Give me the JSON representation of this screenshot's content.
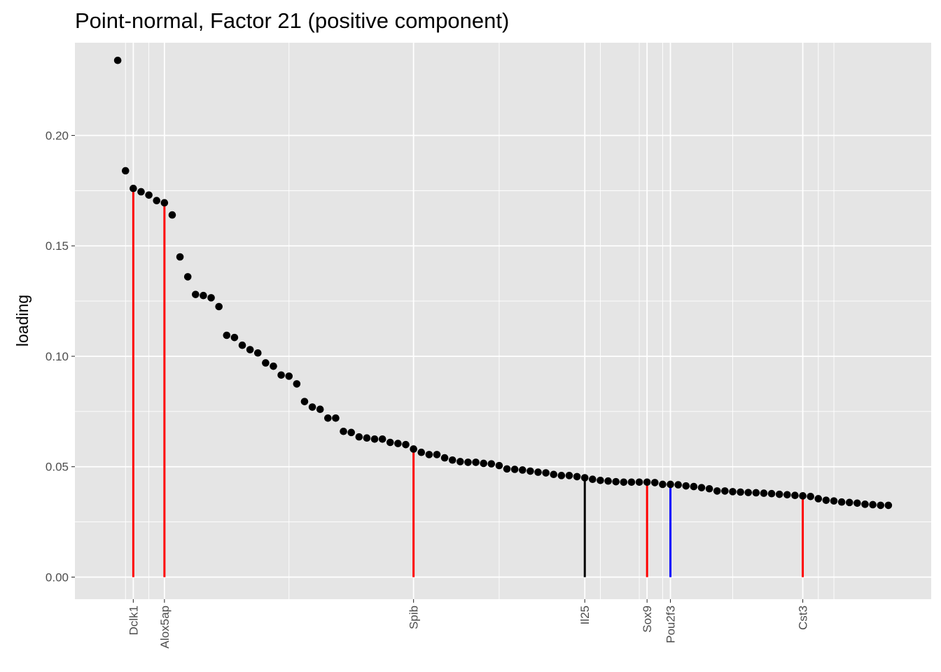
{
  "chart_data": {
    "type": "scatter",
    "title": "Point-normal, Factor 21 (positive component)",
    "xlabel": "",
    "ylabel": "loading",
    "ylim": [
      -0.01,
      0.242
    ],
    "y_ticks": [
      0.0,
      0.05,
      0.1,
      0.15,
      0.2
    ],
    "y_tick_labels": [
      "0.00",
      "0.05",
      "0.10",
      "0.15",
      "0.20"
    ],
    "grid": true,
    "legend": "none",
    "colors": {
      "panel": "#e5e5e5",
      "grid": "#ffffff",
      "point": "#000000",
      "red": "#ff0000",
      "blue": "#0000ff",
      "black": "#000000"
    },
    "x_count": 100,
    "points": [
      {
        "x": 1,
        "y": 0.234
      },
      {
        "x": 2,
        "y": 0.184
      },
      {
        "x": 3,
        "y": 0.176
      },
      {
        "x": 4,
        "y": 0.1745
      },
      {
        "x": 5,
        "y": 0.173
      },
      {
        "x": 6,
        "y": 0.1705
      },
      {
        "x": 7,
        "y": 0.1695
      },
      {
        "x": 8,
        "y": 0.164
      },
      {
        "x": 9,
        "y": 0.145
      },
      {
        "x": 10,
        "y": 0.136
      },
      {
        "x": 11,
        "y": 0.128
      },
      {
        "x": 12,
        "y": 0.1275
      },
      {
        "x": 13,
        "y": 0.1265
      },
      {
        "x": 14,
        "y": 0.1225
      },
      {
        "x": 15,
        "y": 0.1095
      },
      {
        "x": 16,
        "y": 0.1085
      },
      {
        "x": 17,
        "y": 0.105
      },
      {
        "x": 18,
        "y": 0.103
      },
      {
        "x": 19,
        "y": 0.1015
      },
      {
        "x": 20,
        "y": 0.097
      },
      {
        "x": 21,
        "y": 0.0955
      },
      {
        "x": 22,
        "y": 0.0915
      },
      {
        "x": 23,
        "y": 0.091
      },
      {
        "x": 24,
        "y": 0.0875
      },
      {
        "x": 25,
        "y": 0.0795
      },
      {
        "x": 26,
        "y": 0.077
      },
      {
        "x": 27,
        "y": 0.076
      },
      {
        "x": 28,
        "y": 0.072
      },
      {
        "x": 29,
        "y": 0.072
      },
      {
        "x": 30,
        "y": 0.066
      },
      {
        "x": 31,
        "y": 0.0655
      },
      {
        "x": 32,
        "y": 0.0635
      },
      {
        "x": 33,
        "y": 0.063
      },
      {
        "x": 34,
        "y": 0.0625
      },
      {
        "x": 35,
        "y": 0.0625
      },
      {
        "x": 36,
        "y": 0.061
      },
      {
        "x": 37,
        "y": 0.0605
      },
      {
        "x": 38,
        "y": 0.06
      },
      {
        "x": 39,
        "y": 0.058
      },
      {
        "x": 40,
        "y": 0.0565
      },
      {
        "x": 41,
        "y": 0.0555
      },
      {
        "x": 42,
        "y": 0.0555
      },
      {
        "x": 43,
        "y": 0.054
      },
      {
        "x": 44,
        "y": 0.053
      },
      {
        "x": 45,
        "y": 0.0523
      },
      {
        "x": 46,
        "y": 0.052
      },
      {
        "x": 47,
        "y": 0.052
      },
      {
        "x": 48,
        "y": 0.0515
      },
      {
        "x": 49,
        "y": 0.0513
      },
      {
        "x": 50,
        "y": 0.0505
      },
      {
        "x": 51,
        "y": 0.049
      },
      {
        "x": 52,
        "y": 0.0488
      },
      {
        "x": 53,
        "y": 0.0485
      },
      {
        "x": 54,
        "y": 0.048
      },
      {
        "x": 55,
        "y": 0.0475
      },
      {
        "x": 56,
        "y": 0.0472
      },
      {
        "x": 57,
        "y": 0.0465
      },
      {
        "x": 58,
        "y": 0.046
      },
      {
        "x": 59,
        "y": 0.046
      },
      {
        "x": 60,
        "y": 0.0455
      },
      {
        "x": 61,
        "y": 0.045
      },
      {
        "x": 62,
        "y": 0.0443
      },
      {
        "x": 63,
        "y": 0.0438
      },
      {
        "x": 64,
        "y": 0.0435
      },
      {
        "x": 65,
        "y": 0.0432
      },
      {
        "x": 66,
        "y": 0.043
      },
      {
        "x": 67,
        "y": 0.043
      },
      {
        "x": 68,
        "y": 0.043
      },
      {
        "x": 69,
        "y": 0.043
      },
      {
        "x": 70,
        "y": 0.0428
      },
      {
        "x": 71,
        "y": 0.042
      },
      {
        "x": 72,
        "y": 0.042
      },
      {
        "x": 73,
        "y": 0.0418
      },
      {
        "x": 74,
        "y": 0.0413
      },
      {
        "x": 75,
        "y": 0.041
      },
      {
        "x": 76,
        "y": 0.0405
      },
      {
        "x": 77,
        "y": 0.04
      },
      {
        "x": 78,
        "y": 0.039
      },
      {
        "x": 79,
        "y": 0.039
      },
      {
        "x": 80,
        "y": 0.0387
      },
      {
        "x": 81,
        "y": 0.0385
      },
      {
        "x": 82,
        "y": 0.0383
      },
      {
        "x": 83,
        "y": 0.0382
      },
      {
        "x": 84,
        "y": 0.038
      },
      {
        "x": 85,
        "y": 0.0378
      },
      {
        "x": 86,
        "y": 0.0375
      },
      {
        "x": 87,
        "y": 0.0373
      },
      {
        "x": 88,
        "y": 0.037
      },
      {
        "x": 89,
        "y": 0.0368
      },
      {
        "x": 90,
        "y": 0.0365
      },
      {
        "x": 91,
        "y": 0.0355
      },
      {
        "x": 92,
        "y": 0.0348
      },
      {
        "x": 93,
        "y": 0.0345
      },
      {
        "x": 94,
        "y": 0.034
      },
      {
        "x": 95,
        "y": 0.0338
      },
      {
        "x": 96,
        "y": 0.0335
      },
      {
        "x": 97,
        "y": 0.033
      },
      {
        "x": 98,
        "y": 0.0328
      },
      {
        "x": 99,
        "y": 0.0325
      },
      {
        "x": 100,
        "y": 0.0325
      }
    ],
    "highlighted_genes": [
      {
        "label": "Dclk1",
        "x": 3,
        "y": 0.176,
        "color": "#ff0000"
      },
      {
        "label": "Alox5ap",
        "x": 7,
        "y": 0.1695,
        "color": "#ff0000"
      },
      {
        "label": "Spib",
        "x": 39,
        "y": 0.058,
        "color": "#ff0000"
      },
      {
        "label": "Il25",
        "x": 61,
        "y": 0.045,
        "color": "#000000"
      },
      {
        "label": "Sox9",
        "x": 69,
        "y": 0.043,
        "color": "#ff0000"
      },
      {
        "label": "Pou2f3",
        "x": 72,
        "y": 0.042,
        "color": "#0000ff"
      },
      {
        "label": "Cst3",
        "x": 89,
        "y": 0.0368,
        "color": "#ff0000"
      }
    ],
    "minor_vlines_x": [
      2,
      5,
      23,
      50,
      63,
      68,
      71,
      80,
      91,
      93
    ]
  }
}
